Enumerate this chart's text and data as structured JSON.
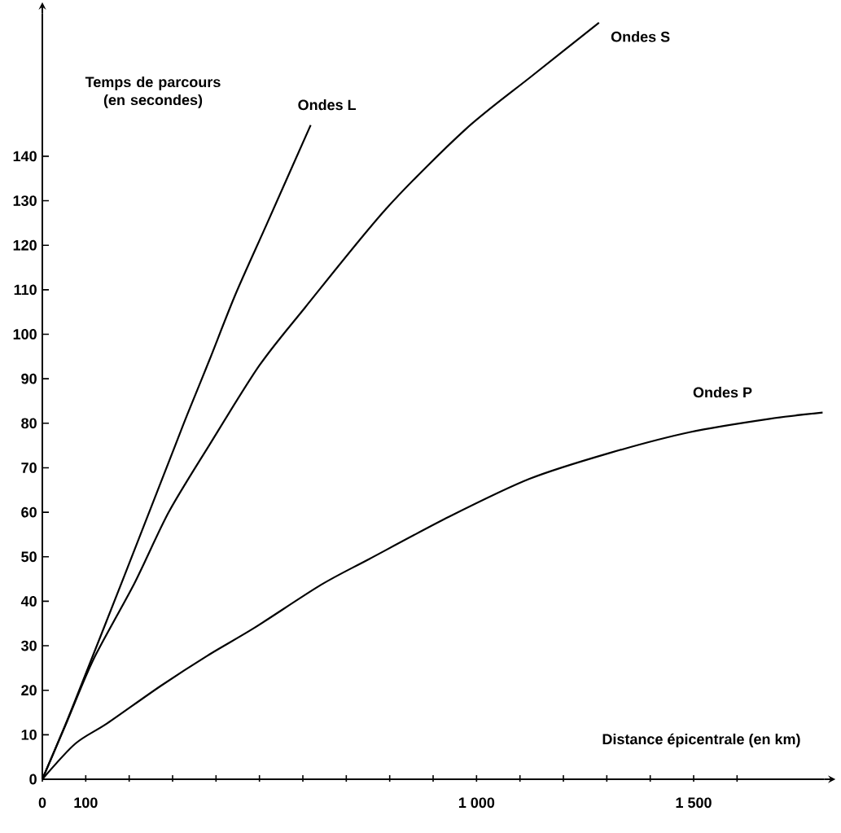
{
  "chart_data": {
    "type": "line",
    "xlabel": "Distance épicentrale (en km)",
    "ylabel": "Temps de parcours (en secondes)",
    "xlim": [
      0,
      1800
    ],
    "ylim": [
      0,
      172
    ],
    "xticks": [
      0,
      100,
      {
        "value": 200,
        "label": null
      },
      {
        "value": 300,
        "label": null
      },
      {
        "value": 400,
        "label": null
      },
      {
        "value": 500,
        "label": null
      },
      {
        "value": 600,
        "label": null
      },
      {
        "value": 700,
        "label": null
      },
      {
        "value": 800,
        "label": null
      },
      {
        "value": 900,
        "label": null
      },
      {
        "value": 1000,
        "label": "1 000"
      },
      {
        "value": 1100,
        "label": null
      },
      {
        "value": 1200,
        "label": null
      },
      {
        "value": 1300,
        "label": null
      },
      {
        "value": 1400,
        "label": null
      },
      {
        "value": 1500,
        "label": "1 500"
      },
      {
        "value": 1600,
        "label": null
      }
    ],
    "yticks": [
      0,
      10,
      20,
      30,
      40,
      50,
      60,
      70,
      80,
      90,
      100,
      110,
      120,
      130,
      140
    ],
    "series": [
      {
        "name": "Ondes L",
        "color": "#000000",
        "x": [
          0,
          52,
          89,
          186,
          306,
          334,
          384,
          445,
          518,
          618
        ],
        "values": [
          0,
          12,
          21,
          45,
          75,
          82,
          94,
          109,
          125,
          147
        ]
      },
      {
        "name": "Ondes S",
        "color": "#000000",
        "x": [
          0,
          57,
          118,
          212,
          291,
          384,
          500,
          605,
          790,
          974,
          1127,
          1282
        ],
        "values": [
          0,
          13,
          27,
          44,
          60,
          75,
          93,
          106,
          128,
          146,
          158,
          170
        ]
      },
      {
        "name": "Ondes P",
        "color": "#000000",
        "x": [
          0,
          76,
          150,
          273,
          384,
          488,
          642,
          753,
          937,
          1122,
          1306,
          1491,
          1675,
          1797
        ],
        "values": [
          0,
          8,
          12.6,
          21,
          28,
          34,
          43.7,
          49.5,
          59,
          67.5,
          73.3,
          78,
          81,
          82.4
        ]
      }
    ]
  }
}
